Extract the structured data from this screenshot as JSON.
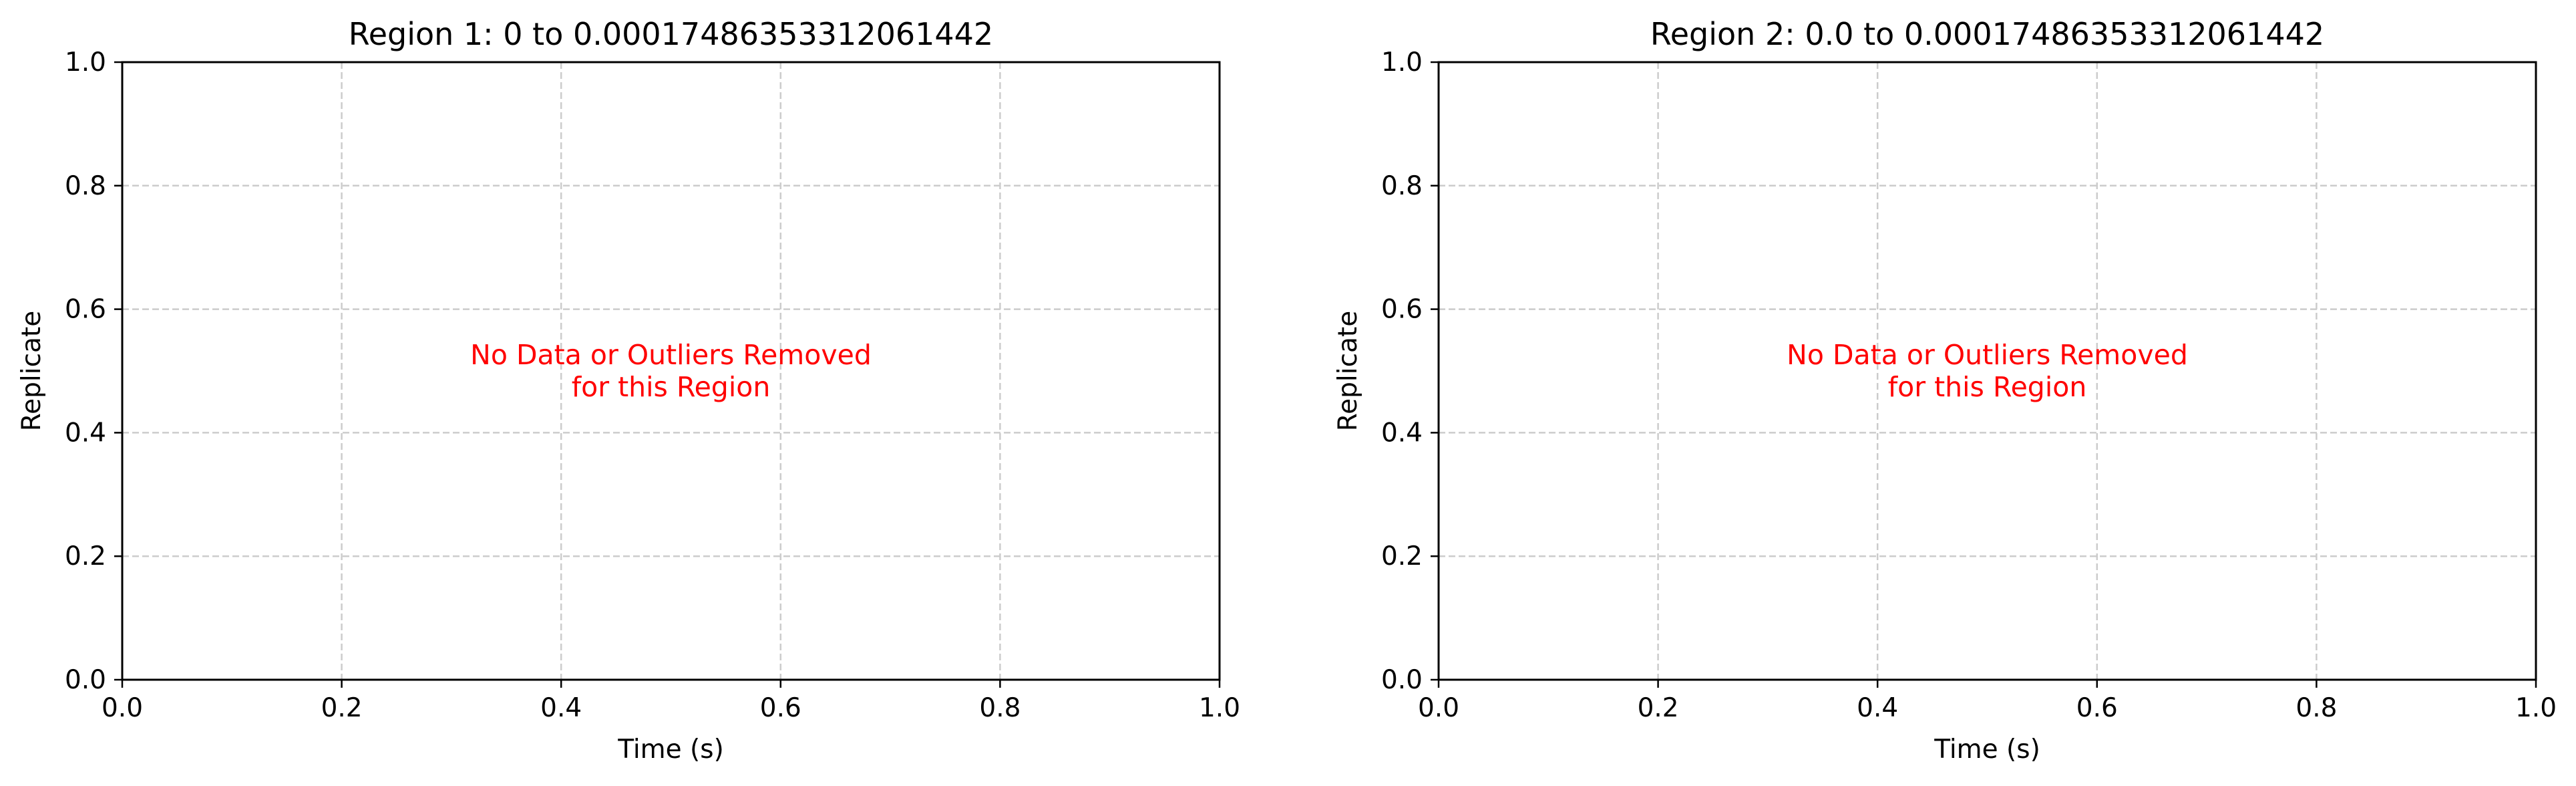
{
  "chart_data": [
    {
      "type": "scatter",
      "title": "Region 1: 0 to 0.00017486353312061442",
      "xlabel": "Time (s)",
      "ylabel": "Replicate",
      "xlim": [
        0.0,
        1.0
      ],
      "ylim": [
        0.0,
        1.0
      ],
      "x_ticks": [
        "0.0",
        "0.2",
        "0.4",
        "0.6",
        "0.8",
        "1.0"
      ],
      "y_ticks": [
        "0.0",
        "0.2",
        "0.4",
        "0.6",
        "0.8",
        "1.0"
      ],
      "grid": true,
      "series": [],
      "annotation": {
        "lines": [
          "No Data or Outliers Removed",
          "for this Region"
        ],
        "color": "#ff0000"
      }
    },
    {
      "type": "scatter",
      "title": "Region 2: 0.0 to 0.00017486353312061442",
      "xlabel": "Time (s)",
      "ylabel": "Replicate",
      "xlim": [
        0.0,
        1.0
      ],
      "ylim": [
        0.0,
        1.0
      ],
      "x_ticks": [
        "0.0",
        "0.2",
        "0.4",
        "0.6",
        "0.8",
        "1.0"
      ],
      "y_ticks": [
        "0.0",
        "0.2",
        "0.4",
        "0.6",
        "0.8",
        "1.0"
      ],
      "grid": true,
      "series": [],
      "annotation": {
        "lines": [
          "No Data or Outliers Removed",
          "for this Region"
        ],
        "color": "#ff0000"
      }
    }
  ]
}
